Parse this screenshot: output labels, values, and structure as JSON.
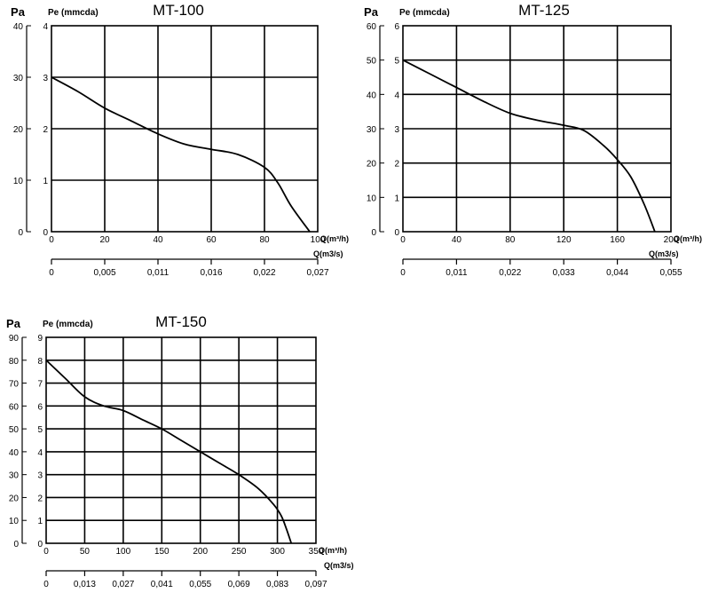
{
  "chart_data": [
    {
      "type": "line",
      "title": "MT-100",
      "left_axis_title": "Pa",
      "right_axis_title": "Pe (mmcda)",
      "xlabel": "Q(m³/h)",
      "x2label": "Q(m3/s)",
      "xlim": [
        0,
        100
      ],
      "ylim": [
        0,
        40
      ],
      "y2lim": [
        0,
        4
      ],
      "x_ticks": [
        0,
        20,
        40,
        60,
        80,
        100
      ],
      "y_ticks": [
        0,
        10,
        20,
        30,
        40
      ],
      "y2_ticks": [
        0,
        1,
        2,
        3,
        4
      ],
      "x2_tick_labels": [
        "0",
        "0,005",
        "0,011",
        "0,016",
        "0,022",
        "0,027"
      ],
      "grid": true,
      "series": [
        {
          "x": [
            0,
            10,
            20,
            30,
            40,
            50,
            60,
            70,
            80,
            85,
            90,
            97
          ],
          "y": [
            30,
            27.2,
            24,
            21.5,
            19,
            17,
            16,
            15,
            12.5,
            9.5,
            5,
            0
          ]
        }
      ]
    },
    {
      "type": "line",
      "title": "MT-125",
      "left_axis_title": "Pa",
      "right_axis_title": "Pe (mmcda)",
      "xlabel": "Q(m³/h)",
      "x2label": "Q(m3/s)",
      "xlim": [
        0,
        200
      ],
      "ylim": [
        0,
        60
      ],
      "y2lim": [
        0,
        6
      ],
      "x_ticks": [
        0,
        40,
        80,
        120,
        160,
        200
      ],
      "y_ticks": [
        0,
        10,
        20,
        30,
        40,
        50,
        60
      ],
      "y2_ticks": [
        0,
        1,
        2,
        3,
        4,
        5,
        6
      ],
      "x2_tick_labels": [
        "0",
        "0,011",
        "0,022",
        "0,033",
        "0,044",
        "0,055"
      ],
      "grid": true,
      "series": [
        {
          "x": [
            0,
            20,
            40,
            60,
            80,
            100,
            120,
            135,
            150,
            160,
            170,
            180,
            188
          ],
          "y": [
            50,
            46,
            42,
            38,
            34.5,
            32.5,
            31,
            29.5,
            25,
            21,
            16,
            8,
            0
          ]
        }
      ]
    },
    {
      "type": "line",
      "title": "MT-150",
      "left_axis_title": "Pa",
      "right_axis_title": "Pe (mmcda)",
      "xlabel": "Q(m³/h)",
      "x2label": "Q(m3/s)",
      "xlim": [
        0,
        350
      ],
      "ylim": [
        0,
        90
      ],
      "y2lim": [
        0,
        9
      ],
      "x_ticks": [
        0,
        50,
        100,
        150,
        200,
        250,
        300,
        350
      ],
      "y_ticks": [
        0,
        10,
        20,
        30,
        40,
        50,
        60,
        70,
        80,
        90
      ],
      "y2_ticks": [
        0,
        1,
        2,
        3,
        4,
        5,
        6,
        7,
        8,
        9
      ],
      "x2_tick_labels": [
        "0",
        "0,013",
        "0,027",
        "0,041",
        "0,055",
        "0,069",
        "0,083",
        "0,097"
      ],
      "grid": true,
      "series": [
        {
          "x": [
            0,
            25,
            50,
            75,
            100,
            125,
            150,
            175,
            200,
            225,
            250,
            275,
            295,
            305,
            312,
            318
          ],
          "y": [
            80,
            72,
            64,
            60,
            58,
            54,
            50,
            45,
            40,
            35,
            30,
            24,
            17,
            12,
            6,
            0
          ]
        }
      ]
    }
  ]
}
